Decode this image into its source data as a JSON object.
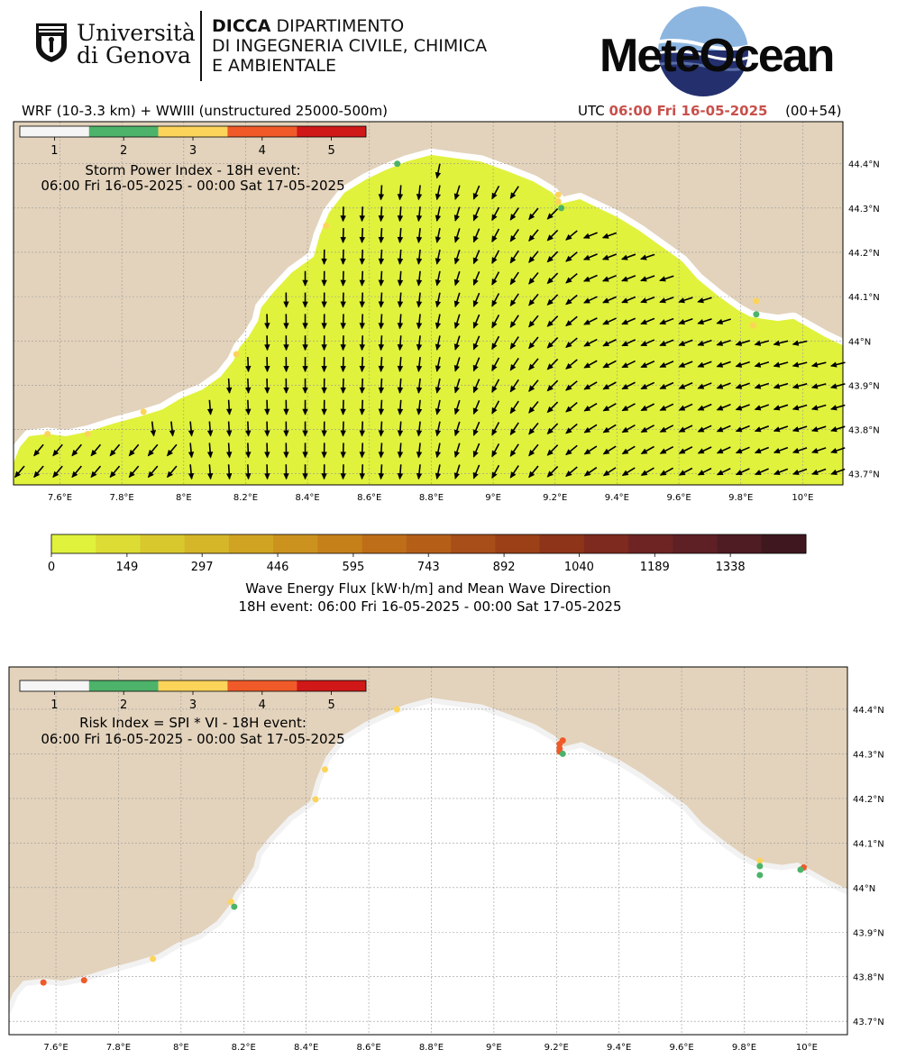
{
  "header": {
    "university": [
      "Università",
      "di Genova"
    ],
    "dept_bold": "DICCA",
    "dept_lines": [
      "DIPARTIMENTO",
      "DI INGEGNERIA CIVILE, CHIMICA",
      "E AMBIENTALE"
    ],
    "brand": "MeteOcean",
    "model": "WRF (10-3.3 km) + WWIII (unstructured 25000-500m)",
    "utc_label": "UTC",
    "utc_time": "06:00 Fri 16-05-2025",
    "lead": "(00+54)"
  },
  "colors": {
    "land": "#e3d3bc",
    "sea_top": "#e0f23c",
    "class_colors": [
      "#f5f5f5",
      "#4db36a",
      "#fcd45a",
      "#f05a28",
      "#d01818"
    ],
    "flux_colors": [
      "#e0f23c",
      "#dcdc34",
      "#d8c82e",
      "#d4b628",
      "#d0a422",
      "#cc921e",
      "#c6801a",
      "#be6e18",
      "#b45e18",
      "#a84e18",
      "#9c4018",
      "#8e3418",
      "#7e2a1e",
      "#6e2422",
      "#5e2024",
      "#4e1c22",
      "#3e181e"
    ]
  },
  "map1": {
    "legend_ticks": [
      "1",
      "2",
      "3",
      "4",
      "5"
    ],
    "title": [
      "Storm Power Index - 18H event:",
      "06:00 Fri 16-05-2025 - 00:00 Sat 17-05-2025"
    ],
    "lat_labels": [
      "44.4°N",
      "44.3°N",
      "44.2°N",
      "44.1°N",
      "44°N",
      "43.9°N",
      "43.8°N",
      "43.7°N"
    ],
    "lon_labels": [
      "7.6°E",
      "7.8°E",
      "8°E",
      "8.2°E",
      "8.4°E",
      "8.6°E",
      "8.8°E",
      "9°E",
      "9.2°E",
      "9.4°E",
      "9.6°E",
      "9.8°E",
      "10°E"
    ],
    "points": [
      {
        "lon": 8.69,
        "lat": 44.4,
        "class": 3
      },
      {
        "lon": 8.69,
        "lat": 44.4,
        "class": 2
      },
      {
        "lon": 9.21,
        "lat": 44.33,
        "class": 3
      },
      {
        "lon": 9.21,
        "lat": 44.315,
        "class": 3
      },
      {
        "lon": 9.22,
        "lat": 44.3,
        "class": 2
      },
      {
        "lon": 9.85,
        "lat": 44.09,
        "class": 3
      },
      {
        "lon": 9.85,
        "lat": 44.06,
        "class": 2
      },
      {
        "lon": 9.84,
        "lat": 44.035,
        "class": 3
      },
      {
        "lon": 8.17,
        "lat": 43.97,
        "class": 3
      },
      {
        "lon": 7.87,
        "lat": 43.84,
        "class": 3
      },
      {
        "lon": 7.69,
        "lat": 43.79,
        "class": 3
      },
      {
        "lon": 7.56,
        "lat": 43.79,
        "class": 3
      },
      {
        "lon": 8.46,
        "lat": 44.26,
        "class": 3
      }
    ]
  },
  "colorbar": {
    "ticks": [
      "0",
      "149",
      "297",
      "446",
      "595",
      "743",
      "892",
      "1040",
      "1189",
      "1338"
    ],
    "max": 1487,
    "label": "Wave Energy Flux [kW·h/m] and Mean Wave Direction",
    "sublabel": "18H event: 06:00 Fri 16-05-2025 - 00:00 Sat 17-05-2025"
  },
  "map2": {
    "legend_ticks": [
      "1",
      "2",
      "3",
      "4",
      "5"
    ],
    "title": [
      "Risk Index = SPI * VI - 18H event:",
      "06:00 Fri 16-05-2025 - 00:00 Sat 17-05-2025"
    ],
    "lat_labels": [
      "44.4°N",
      "44.3°N",
      "44.2°N",
      "44.1°N",
      "44°N",
      "43.9°N",
      "43.8°N",
      "43.7°N"
    ],
    "lon_labels": [
      "7.6°E",
      "7.8°E",
      "8°E",
      "8.2°E",
      "8.4°E",
      "8.6°E",
      "8.8°E",
      "9°E",
      "9.2°E",
      "9.4°E",
      "9.6°E",
      "9.8°E",
      "10°E"
    ],
    "points": [
      {
        "lon": 8.69,
        "lat": 44.4,
        "class": 3
      },
      {
        "lon": 8.46,
        "lat": 44.265,
        "class": 3
      },
      {
        "lon": 8.43,
        "lat": 44.198,
        "class": 3
      },
      {
        "lon": 9.22,
        "lat": 44.33,
        "class": 4
      },
      {
        "lon": 9.21,
        "lat": 44.322,
        "class": 4
      },
      {
        "lon": 9.21,
        "lat": 44.312,
        "class": 4
      },
      {
        "lon": 9.21,
        "lat": 44.305,
        "class": 4
      },
      {
        "lon": 9.22,
        "lat": 44.3,
        "class": 2
      },
      {
        "lon": 9.85,
        "lat": 44.06,
        "class": 3
      },
      {
        "lon": 9.85,
        "lat": 44.048,
        "class": 2
      },
      {
        "lon": 9.85,
        "lat": 44.028,
        "class": 2
      },
      {
        "lon": 9.99,
        "lat": 44.045,
        "class": 4
      },
      {
        "lon": 9.98,
        "lat": 44.04,
        "class": 2
      },
      {
        "lon": 8.16,
        "lat": 43.968,
        "class": 3
      },
      {
        "lon": 8.17,
        "lat": 43.957,
        "class": 2
      },
      {
        "lon": 7.91,
        "lat": 43.84,
        "class": 3
      },
      {
        "lon": 7.69,
        "lat": 43.792,
        "class": 4
      },
      {
        "lon": 7.56,
        "lat": 43.787,
        "class": 4
      }
    ]
  }
}
